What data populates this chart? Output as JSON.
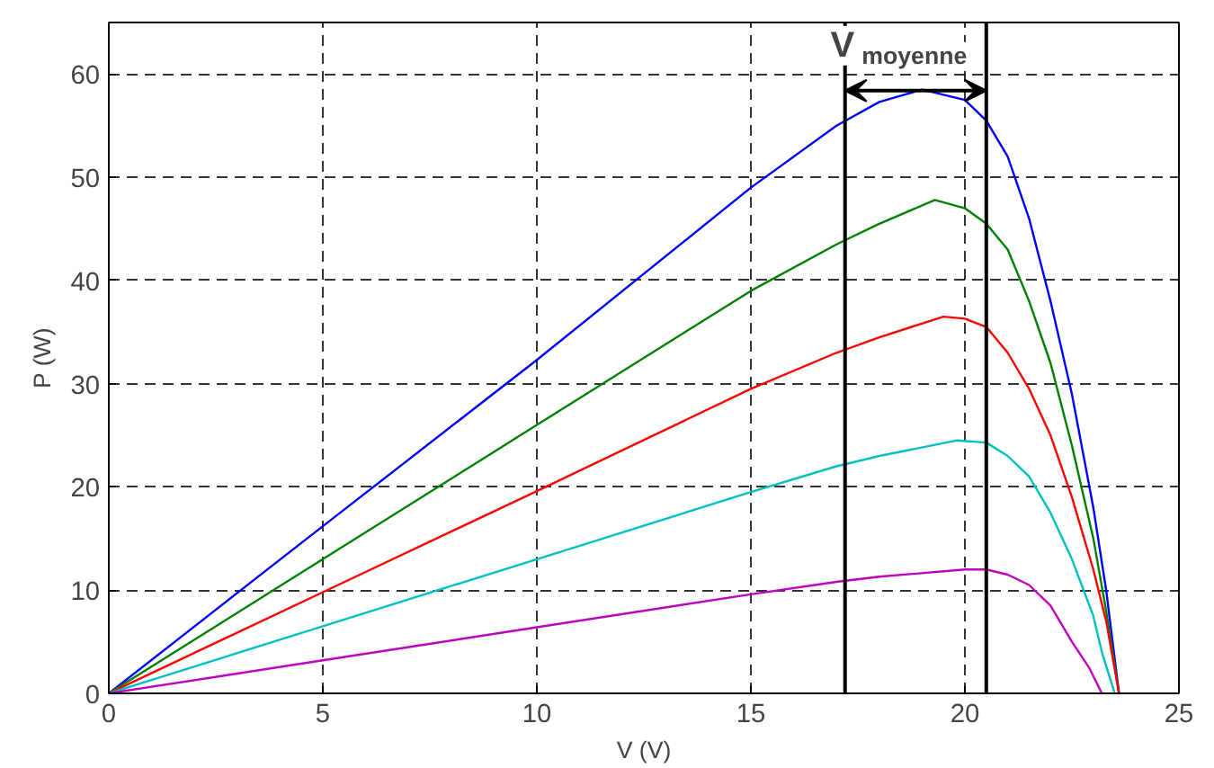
{
  "chart_data": {
    "type": "line",
    "xlabel": "V (V)",
    "ylabel": "P (W)",
    "xlim": [
      0,
      25
    ],
    "ylim": [
      0,
      65
    ],
    "xticks": [
      0,
      5,
      10,
      15,
      20,
      25
    ],
    "yticks": [
      0,
      10,
      20,
      30,
      40,
      50,
      60
    ],
    "grid": true,
    "marker": "none",
    "line_style": "solid",
    "series": [
      {
        "color": "#0000ff",
        "x": [
          0,
          5,
          10,
          15,
          17,
          18,
          19,
          20,
          20.5,
          21,
          21.5,
          22,
          22.5,
          23,
          23.3,
          23.6
        ],
        "values": [
          0,
          16.2,
          32.3,
          49,
          55,
          57.3,
          58.5,
          57.5,
          55.5,
          52,
          46,
          38,
          29,
          18,
          10,
          0
        ]
      },
      {
        "color": "#008000",
        "x": [
          0,
          5,
          10,
          15,
          17,
          18,
          19.3,
          20,
          20.5,
          21,
          21.5,
          22,
          22.5,
          23,
          23.3,
          23.6
        ],
        "values": [
          0,
          13,
          26,
          39,
          43.5,
          45.5,
          47.8,
          47,
          45.5,
          43,
          38,
          32,
          24,
          15,
          8,
          0
        ]
      },
      {
        "color": "#ff0000",
        "x": [
          0,
          5,
          10,
          15,
          17,
          18,
          19.5,
          20,
          20.5,
          21,
          21.5,
          22,
          22.5,
          23,
          23.3,
          23.6
        ],
        "values": [
          0,
          9.8,
          19.6,
          29.5,
          33,
          34.5,
          36.5,
          36.3,
          35.5,
          33,
          29.5,
          25,
          19,
          12,
          7,
          0
        ]
      },
      {
        "color": "#00bfbf",
        "x": [
          0,
          5,
          10,
          15,
          17,
          18,
          19.8,
          20.5,
          21,
          21.5,
          22,
          22.5,
          23,
          23.2,
          23.5
        ],
        "values": [
          0,
          6.5,
          13,
          19.5,
          22,
          23,
          24.5,
          24.3,
          23,
          21,
          17.5,
          13,
          7.5,
          4,
          0
        ]
      },
      {
        "color": "#bf00bf",
        "x": [
          0,
          5,
          10,
          15,
          17,
          18,
          20,
          20.5,
          21,
          21.5,
          22,
          22.5,
          22.9,
          23.2
        ],
        "values": [
          0,
          3.2,
          6.4,
          9.6,
          10.8,
          11.3,
          12,
          12,
          11.5,
          10.5,
          8.5,
          5,
          2.5,
          0
        ]
      }
    ],
    "ref_lines": [
      {
        "axis": "x",
        "value": 17.2,
        "color": "#000000",
        "line_style": "solid"
      },
      {
        "axis": "x",
        "value": 20.5,
        "color": "#000000",
        "line_style": "solid"
      }
    ],
    "annotations": [
      {
        "text": "V$_{moyenne}$",
        "x": 18.85,
        "y": 58.4
      }
    ]
  }
}
